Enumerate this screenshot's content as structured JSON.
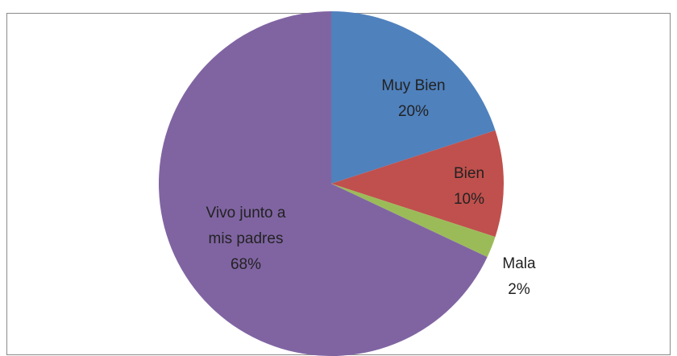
{
  "chart_data": {
    "type": "pie",
    "categories": [
      "Muy Bien",
      "Bien",
      "Mala",
      "Vivo junto a mis padres"
    ],
    "values": [
      20,
      10,
      2,
      68
    ],
    "value_labels": [
      "20%",
      "10%",
      "2%",
      "68%"
    ],
    "colors": [
      "#4f81bd",
      "#c0504d",
      "#9bbb59",
      "#8064a2"
    ]
  }
}
